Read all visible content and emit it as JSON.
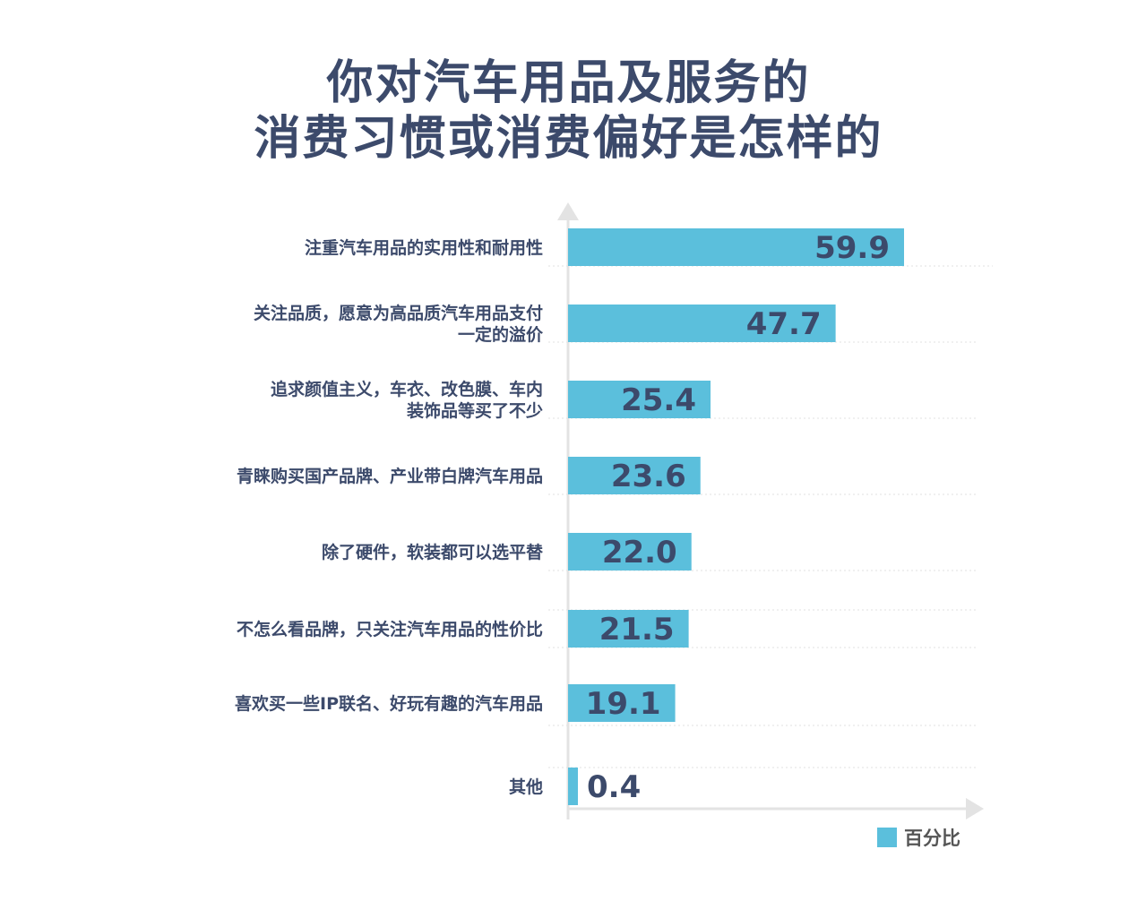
{
  "chart_data": {
    "type": "bar",
    "orientation": "horizontal",
    "title": [
      "你对汽车用品及服务的",
      "消费习惯或消费偏好是怎样的"
    ],
    "categories": [
      [
        "注重汽车用品的实用性和耐用性"
      ],
      [
        "关注品质，愿意为高品质汽车用品支付",
        "一定的溢价"
      ],
      [
        "追求颜值主义，车衣、改色膜、车内",
        "装饰品等买了不少"
      ],
      [
        "青睐购买国产品牌、产业带白牌汽车用品"
      ],
      [
        "除了硬件，软装都可以选平替"
      ],
      [
        "不怎么看品牌，只关注汽车用品的性价比"
      ],
      [
        "喜欢买一些IP联名、好玩有趣的汽车用品"
      ],
      [
        "其他"
      ]
    ],
    "series": [
      {
        "name": "百分比",
        "values": [
          59.9,
          47.7,
          25.4,
          23.6,
          22.0,
          21.5,
          19.1,
          0.4
        ],
        "labels": [
          "59.9",
          "47.7",
          "25.4",
          "23.6",
          "22.0",
          "21.5",
          "19.1",
          "0.4"
        ]
      }
    ],
    "xlim": [
      0,
      60
    ],
    "grid": true,
    "legend_position": "bottom-right",
    "colors": {
      "bar": "#5bbfdc",
      "title": "#3c4a6b",
      "value_label": "#3c4a6b",
      "category_label": "#3c4a6b",
      "axis": "#e3e3e3",
      "grid": "#e6e6e6",
      "legend_text": "#555555"
    }
  }
}
